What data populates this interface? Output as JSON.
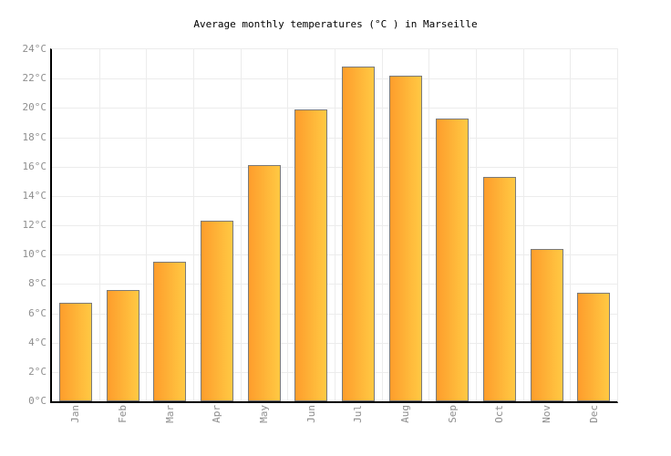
{
  "page": {
    "background": "#ffffff"
  },
  "chart_data": {
    "type": "bar",
    "title": "Average monthly temperatures (°C ) in Marseille",
    "unit": "°C",
    "categories": [
      "Jan",
      "Feb",
      "Mar",
      "Apr",
      "May",
      "Jun",
      "Jul",
      "Aug",
      "Sep",
      "Oct",
      "Nov",
      "Dec"
    ],
    "values": [
      6.7,
      7.6,
      9.5,
      12.3,
      16.1,
      19.9,
      22.8,
      22.2,
      19.3,
      15.3,
      10.4,
      7.4
    ],
    "xlabel": "",
    "ylabel": "",
    "ylim": [
      0,
      24
    ],
    "ytick_step": 2,
    "ytick_labels": [
      "0°C",
      "2°C",
      "4°C",
      "6°C",
      "8°C",
      "10°C",
      "12°C",
      "14°C",
      "16°C",
      "18°C",
      "20°C",
      "22°C",
      "24°C"
    ],
    "grid": true,
    "legend": false,
    "colors": {
      "bar_gradient_left": "#fe9d2c",
      "bar_gradient_right": "#ffc943",
      "bar_border": "#7a7a7a",
      "grid": "#ececec",
      "axis": "#000000",
      "tick_label": "#8e8e8e",
      "title": "#000000"
    }
  }
}
